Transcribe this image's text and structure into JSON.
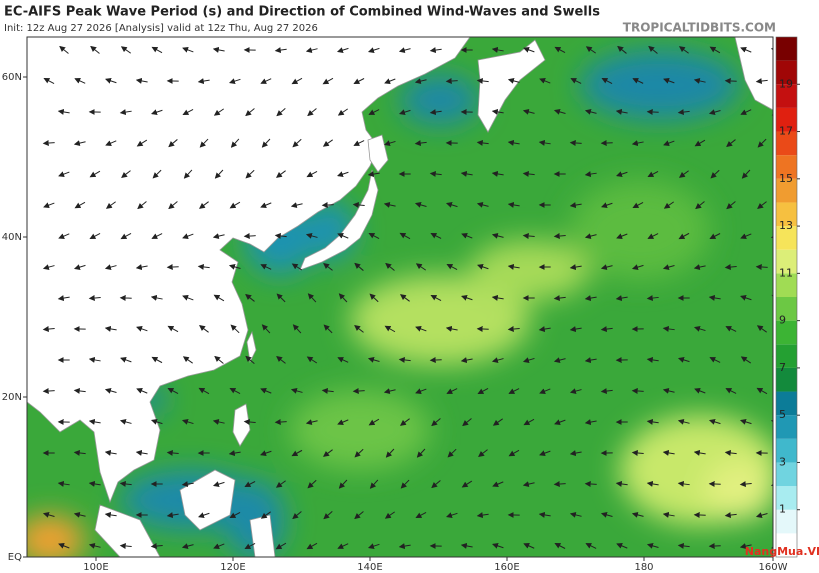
{
  "header": {
    "title": "EC-AIFS Peak Wave Period (s) and Direction of Combined Wind-Waves and Swells",
    "init": "Init: 12z Aug 27 2026   [Analysis]   valid at 12z Thu, Aug 27 2026",
    "source": "TROPICALTIDBITS.COM"
  },
  "map": {
    "lat_labels": [
      "60N",
      "40N",
      "20N",
      "EQ"
    ],
    "lon_labels": [
      "100E",
      "120E",
      "140E",
      "160E",
      "180",
      "160W"
    ]
  },
  "colorbar": {
    "ticks": [
      1,
      3,
      5,
      7,
      9,
      11,
      13,
      15,
      17,
      19
    ],
    "lim": [
      -1,
      21
    ],
    "colors": [
      "#ffffff",
      "#e4f8fa",
      "#a8ecf0",
      "#70d4e0",
      "#40b8cc",
      "#2098b4",
      "#0c7c98",
      "#138a3c",
      "#24a032",
      "#3cb434",
      "#6cc844",
      "#a0dc54",
      "#dcee78",
      "#f6e45a",
      "#f6c040",
      "#f09c30",
      "#ee7422",
      "#ea4a18",
      "#e02010",
      "#c41010",
      "#a00606",
      "#780000"
    ]
  },
  "watermark": "NangMua.VN"
}
